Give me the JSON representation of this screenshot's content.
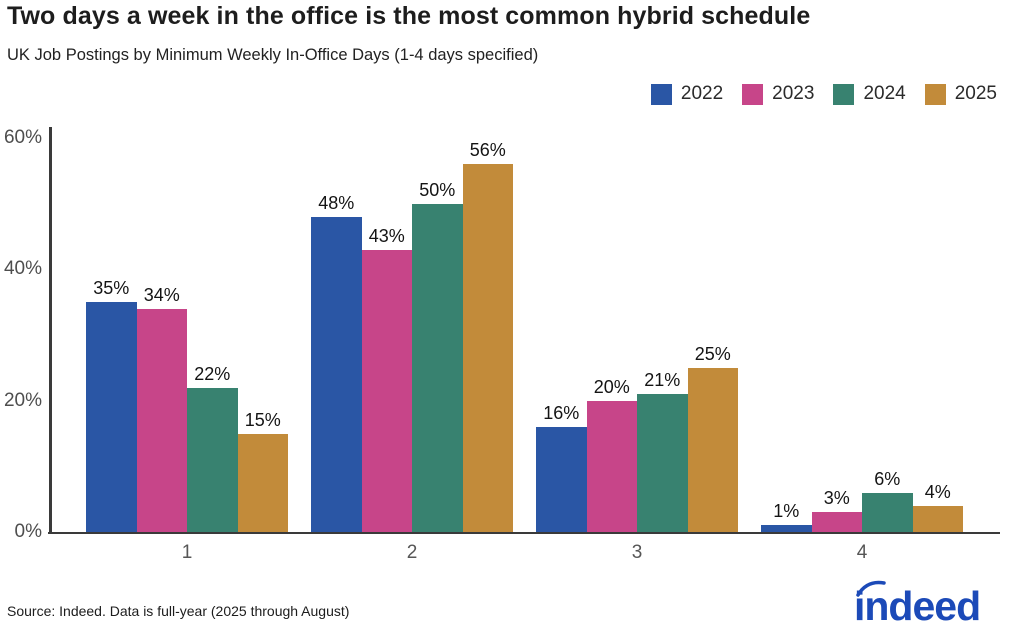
{
  "header": {
    "title": "Two days a week in the office is the most common hybrid schedule",
    "subtitle": "UK Job Postings by Minimum Weekly In-Office Days (1-4 days specified)"
  },
  "chart_data": {
    "type": "bar",
    "title": "Two days a week in the office is the most common hybrid schedule",
    "subtitle": "UK Job Postings by Minimum Weekly In-Office Days (1-4 days specified)",
    "categories": [
      "1",
      "2",
      "3",
      "4"
    ],
    "series": [
      {
        "name": "2022",
        "color": "#2a56a5",
        "values": [
          35,
          48,
          16,
          1
        ]
      },
      {
        "name": "2023",
        "color": "#c74589",
        "values": [
          34,
          43,
          20,
          3
        ]
      },
      {
        "name": "2024",
        "color": "#388270",
        "values": [
          22,
          50,
          21,
          6
        ]
      },
      {
        "name": "2025",
        "color": "#c28b3a",
        "values": [
          15,
          56,
          25,
          4
        ]
      }
    ],
    "ylim": [
      0,
      60
    ],
    "yticks": [
      {
        "value": 0,
        "label": "0%"
      },
      {
        "value": 20,
        "label": "20%"
      },
      {
        "value": 40,
        "label": "40%"
      },
      {
        "value": 60,
        "label": "60%"
      }
    ],
    "value_suffix": "%",
    "grid": false,
    "legend_position": "top-right",
    "axis_color": "#3a3a3a"
  },
  "footer": {
    "source": "Source: Indeed. Data is full-year (2025 through August)",
    "logo_text": "indeed",
    "logo_color": "#1c4ab8"
  }
}
